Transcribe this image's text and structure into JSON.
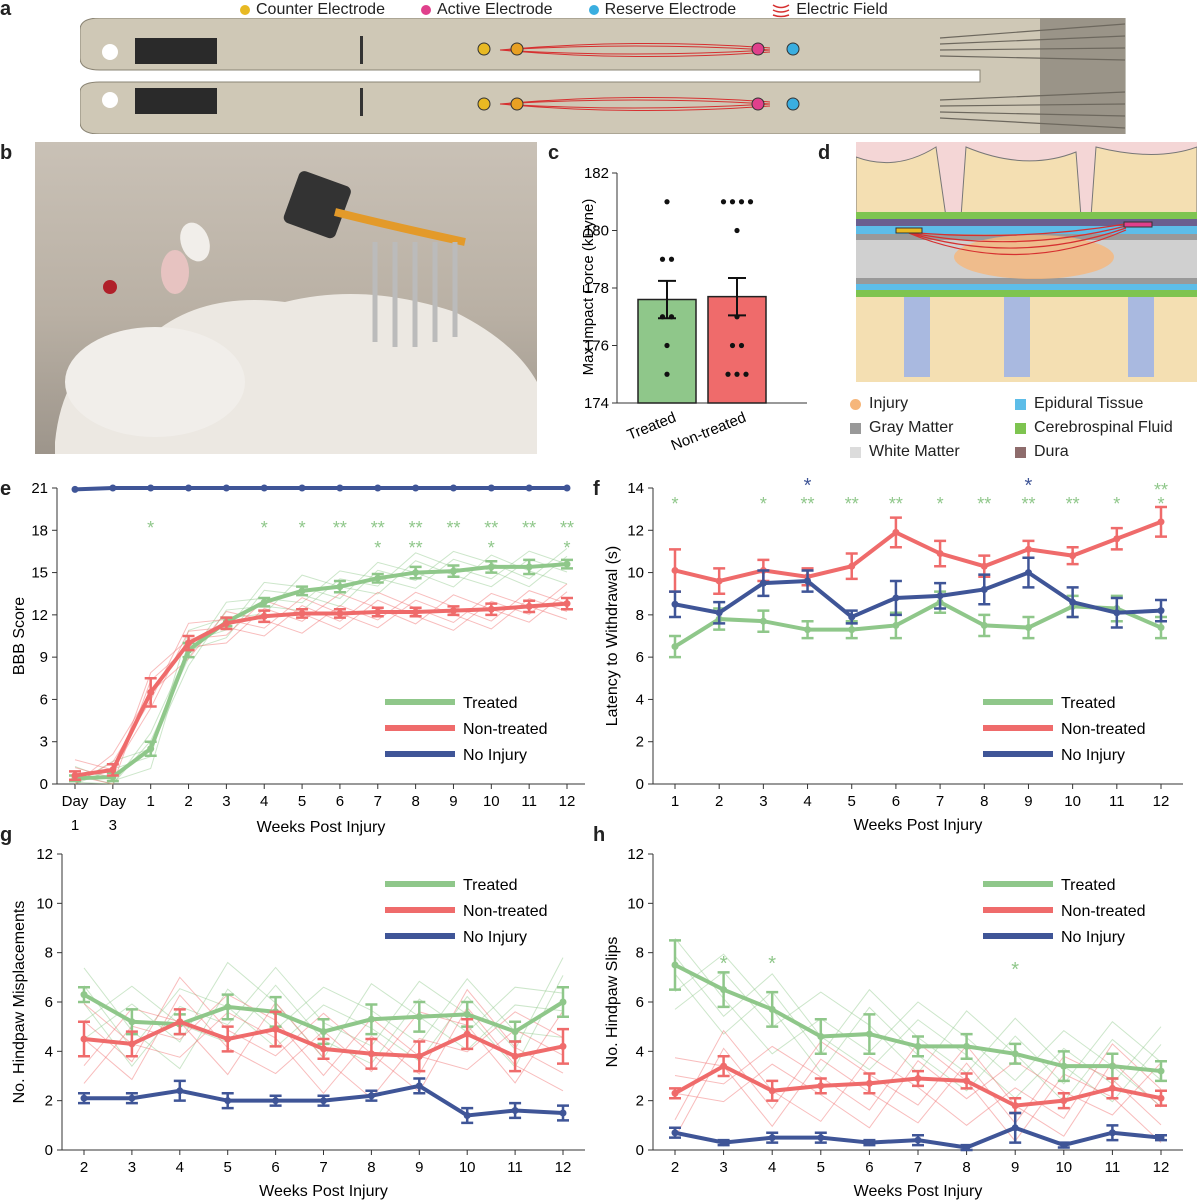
{
  "panel_letters": {
    "a": "a",
    "b": "b",
    "c": "c",
    "d": "d",
    "e": "e",
    "f": "f",
    "g": "g",
    "h": "h"
  },
  "colors": {
    "treated": "#8fc78a",
    "nontreated": "#ef6b6b",
    "noinjury": "#3f5597",
    "counter": "#e8b923",
    "active": "#e0408c",
    "reserve": "#3aaee0",
    "field": "#d63030"
  },
  "top_legend": {
    "counter": "Counter Electrode",
    "active": "Active Electrode",
    "reserve": "Reserve Electrode",
    "field": "Electric Field"
  },
  "d_legend": {
    "injury": "Injury",
    "gray": "Gray Matter",
    "white": "White Matter",
    "epidural": "Epidural Tissue",
    "csf": "Cerebrospinal Fluid",
    "dura": "Dura"
  },
  "chart_data": [
    {
      "id": "c",
      "type": "bar",
      "categories": [
        "Treated",
        "Non-treated"
      ],
      "values": [
        177.6,
        177.7
      ],
      "errors": [
        0.65,
        0.65
      ],
      "points": [
        [
          181,
          179,
          179,
          177,
          177,
          176,
          175
        ],
        [
          181,
          181,
          181,
          181,
          180,
          177,
          176,
          176,
          175,
          175,
          175
        ]
      ],
      "ylabel": "Max Impact Force (kDyne)",
      "ylim": [
        174,
        182
      ],
      "yticks": [
        "174",
        "176",
        "178",
        "180",
        "182"
      ]
    },
    {
      "id": "e",
      "type": "line",
      "x_labels": [
        "Day",
        "Day",
        "1",
        "2",
        "3",
        "4",
        "5",
        "6",
        "7",
        "8",
        "9",
        "10",
        "11",
        "12"
      ],
      "x_sub": [
        "1",
        "3",
        "",
        "",
        "",
        "",
        "",
        "",
        "",
        "",
        "",
        "",
        "",
        ""
      ],
      "xlabel": "Weeks Post Injury",
      "ylabel": "BBB Score",
      "ylim": [
        0,
        21
      ],
      "yticks": [
        "0",
        "3",
        "6",
        "9",
        "12",
        "15",
        "18",
        "21"
      ],
      "series": [
        {
          "name": "Treated",
          "values": [
            0.4,
            0.5,
            2.5,
            9.5,
            11.5,
            12.9,
            13.7,
            14.0,
            14.6,
            15.0,
            15.1,
            15.4,
            15.4,
            15.6
          ],
          "errors": [
            0.2,
            0.3,
            0.5,
            0.5,
            0.3,
            0.3,
            0.3,
            0.4,
            0.3,
            0.4,
            0.4,
            0.4,
            0.5,
            0.3
          ]
        },
        {
          "name": "Non-treated",
          "values": [
            0.6,
            1.0,
            6.5,
            10.0,
            11.4,
            11.9,
            12.1,
            12.1,
            12.2,
            12.2,
            12.3,
            12.4,
            12.6,
            12.8
          ],
          "errors": [
            0.3,
            0.4,
            1.0,
            0.5,
            0.4,
            0.4,
            0.3,
            0.3,
            0.3,
            0.3,
            0.3,
            0.4,
            0.4,
            0.4
          ]
        },
        {
          "name": "No Injury",
          "values": [
            20.9,
            21,
            21,
            21,
            21,
            21,
            21,
            21,
            21,
            21,
            21,
            21,
            21,
            21
          ],
          "errors": [
            0,
            0,
            0,
            0,
            0,
            0,
            0,
            0,
            0,
            0,
            0,
            0,
            0,
            0
          ]
        }
      ],
      "stars": [
        {
          "x": 2,
          "text": "*",
          "row": 1
        },
        {
          "x": 5,
          "text": "*",
          "row": 1
        },
        {
          "x": 6,
          "text": "*",
          "row": 1
        },
        {
          "x": 7,
          "text": "**",
          "row": 1
        },
        {
          "x": 8,
          "text": "**",
          "row": 1
        },
        {
          "x": 8,
          "text": "*",
          "row": 2
        },
        {
          "x": 9,
          "text": "**",
          "row": 1
        },
        {
          "x": 9,
          "text": "**",
          "row": 2
        },
        {
          "x": 10,
          "text": "**",
          "row": 1
        },
        {
          "x": 11,
          "text": "**",
          "row": 1
        },
        {
          "x": 11,
          "text": "*",
          "row": 2
        },
        {
          "x": 12,
          "text": "**",
          "row": 1
        },
        {
          "x": 13,
          "text": "**",
          "row": 1
        },
        {
          "x": 13,
          "text": "*",
          "row": 2
        }
      ]
    },
    {
      "id": "f",
      "type": "line",
      "x_labels": [
        "1",
        "2",
        "3",
        "4",
        "5",
        "6",
        "7",
        "8",
        "9",
        "10",
        "11",
        "12"
      ],
      "xlabel": "Weeks Post Injury",
      "ylabel": "Latency to Withdrawal (s)",
      "ylim": [
        0,
        14
      ],
      "yticks": [
        "0",
        "2",
        "4",
        "6",
        "8",
        "10",
        "12",
        "14"
      ],
      "series": [
        {
          "name": "Treated",
          "values": [
            6.5,
            7.8,
            7.7,
            7.3,
            7.3,
            7.5,
            8.6,
            7.5,
            7.4,
            8.4,
            8.3,
            7.4
          ],
          "errors": [
            0.5,
            0.5,
            0.5,
            0.4,
            0.4,
            0.6,
            0.5,
            0.5,
            0.5,
            0.5,
            0.6,
            0.5
          ]
        },
        {
          "name": "Non-treated",
          "values": [
            10.1,
            9.6,
            10.1,
            9.8,
            10.3,
            11.9,
            10.9,
            10.3,
            11.1,
            10.8,
            11.6,
            12.4
          ],
          "errors": [
            1.0,
            0.6,
            0.5,
            0.4,
            0.6,
            0.7,
            0.6,
            0.5,
            0.4,
            0.4,
            0.5,
            0.7
          ]
        },
        {
          "name": "No Injury",
          "values": [
            8.5,
            8.1,
            9.5,
            9.6,
            7.9,
            8.8,
            8.9,
            9.2,
            10.0,
            8.6,
            8.1,
            8.2
          ],
          "errors": [
            0.6,
            0.5,
            0.6,
            0.5,
            0.3,
            0.8,
            0.6,
            0.7,
            0.7,
            0.7,
            0.7,
            0.5
          ]
        }
      ],
      "stars_green": [
        {
          "x": 0,
          "text": "*",
          "row": 1
        },
        {
          "x": 2,
          "text": "*",
          "row": 1
        },
        {
          "x": 3,
          "text": "**",
          "row": 1
        },
        {
          "x": 4,
          "text": "**",
          "row": 1
        },
        {
          "x": 5,
          "text": "**",
          "row": 1
        },
        {
          "x": 6,
          "text": "*",
          "row": 1
        },
        {
          "x": 7,
          "text": "**",
          "row": 1
        },
        {
          "x": 8,
          "text": "**",
          "row": 1
        },
        {
          "x": 9,
          "text": "**",
          "row": 1
        },
        {
          "x": 10,
          "text": "*",
          "row": 1
        },
        {
          "x": 11,
          "text": "**",
          "row": 2
        },
        {
          "x": 11,
          "text": "*",
          "row": 1
        }
      ],
      "stars_blue": [
        {
          "x": 3,
          "text": "*"
        },
        {
          "x": 8,
          "text": "*"
        }
      ]
    },
    {
      "id": "g",
      "type": "line",
      "x_labels": [
        "2",
        "3",
        "4",
        "5",
        "6",
        "7",
        "8",
        "9",
        "10",
        "11",
        "12"
      ],
      "xlabel": "Weeks Post Injury",
      "ylabel": "No. Hindpaw Misplacements",
      "ylim": [
        0,
        12
      ],
      "yticks": [
        "0",
        "2",
        "4",
        "6",
        "8",
        "10",
        "12"
      ],
      "series": [
        {
          "name": "Treated",
          "values": [
            6.3,
            5.2,
            5.1,
            5.8,
            5.6,
            4.8,
            5.3,
            5.4,
            5.5,
            4.8,
            6.0
          ],
          "errors": [
            0.3,
            0.5,
            0.4,
            0.5,
            0.6,
            0.5,
            0.6,
            0.6,
            0.5,
            0.4,
            0.6
          ]
        },
        {
          "name": "Non-treated",
          "values": [
            4.5,
            4.3,
            5.2,
            4.5,
            4.9,
            4.1,
            3.9,
            3.8,
            4.7,
            3.8,
            4.2
          ],
          "errors": [
            0.7,
            0.5,
            0.5,
            0.5,
            0.7,
            0.4,
            0.6,
            0.6,
            0.6,
            0.6,
            0.7
          ]
        },
        {
          "name": "No Injury",
          "values": [
            2.1,
            2.1,
            2.4,
            2.0,
            2.0,
            2.0,
            2.2,
            2.6,
            1.4,
            1.6,
            1.5
          ],
          "errors": [
            0.2,
            0.2,
            0.4,
            0.3,
            0.2,
            0.2,
            0.2,
            0.3,
            0.3,
            0.3,
            0.3
          ]
        }
      ]
    },
    {
      "id": "h",
      "type": "line",
      "x_labels": [
        "2",
        "3",
        "4",
        "5",
        "6",
        "7",
        "8",
        "9",
        "10",
        "11",
        "12"
      ],
      "xlabel": "Weeks Post Injury",
      "ylabel": "No. Hindpaw Slips",
      "ylim": [
        0,
        12
      ],
      "yticks": [
        "0",
        "2",
        "4",
        "6",
        "8",
        "10",
        "12"
      ],
      "series": [
        {
          "name": "Treated",
          "values": [
            7.5,
            6.5,
            5.7,
            4.6,
            4.7,
            4.2,
            4.2,
            3.9,
            3.4,
            3.4,
            3.2
          ],
          "errors": [
            1.0,
            0.7,
            0.7,
            0.7,
            0.8,
            0.4,
            0.5,
            0.4,
            0.6,
            0.5,
            0.4
          ]
        },
        {
          "name": "Non-treated",
          "values": [
            2.3,
            3.4,
            2.4,
            2.6,
            2.7,
            2.9,
            2.8,
            1.8,
            2.0,
            2.5,
            2.1
          ],
          "errors": [
            0.2,
            0.4,
            0.4,
            0.3,
            0.4,
            0.3,
            0.3,
            0.3,
            0.3,
            0.4,
            0.3
          ]
        },
        {
          "name": "No Injury",
          "values": [
            0.7,
            0.3,
            0.5,
            0.5,
            0.3,
            0.4,
            0.1,
            0.9,
            0.2,
            0.7,
            0.5
          ],
          "errors": [
            0.2,
            0.1,
            0.2,
            0.2,
            0.1,
            0.2,
            0.1,
            0.6,
            0.1,
            0.3,
            0.1
          ]
        }
      ],
      "stars": [
        {
          "x": 1,
          "text": "*"
        },
        {
          "x": 2,
          "text": "*"
        },
        {
          "x": 7,
          "text": "*"
        }
      ]
    }
  ]
}
